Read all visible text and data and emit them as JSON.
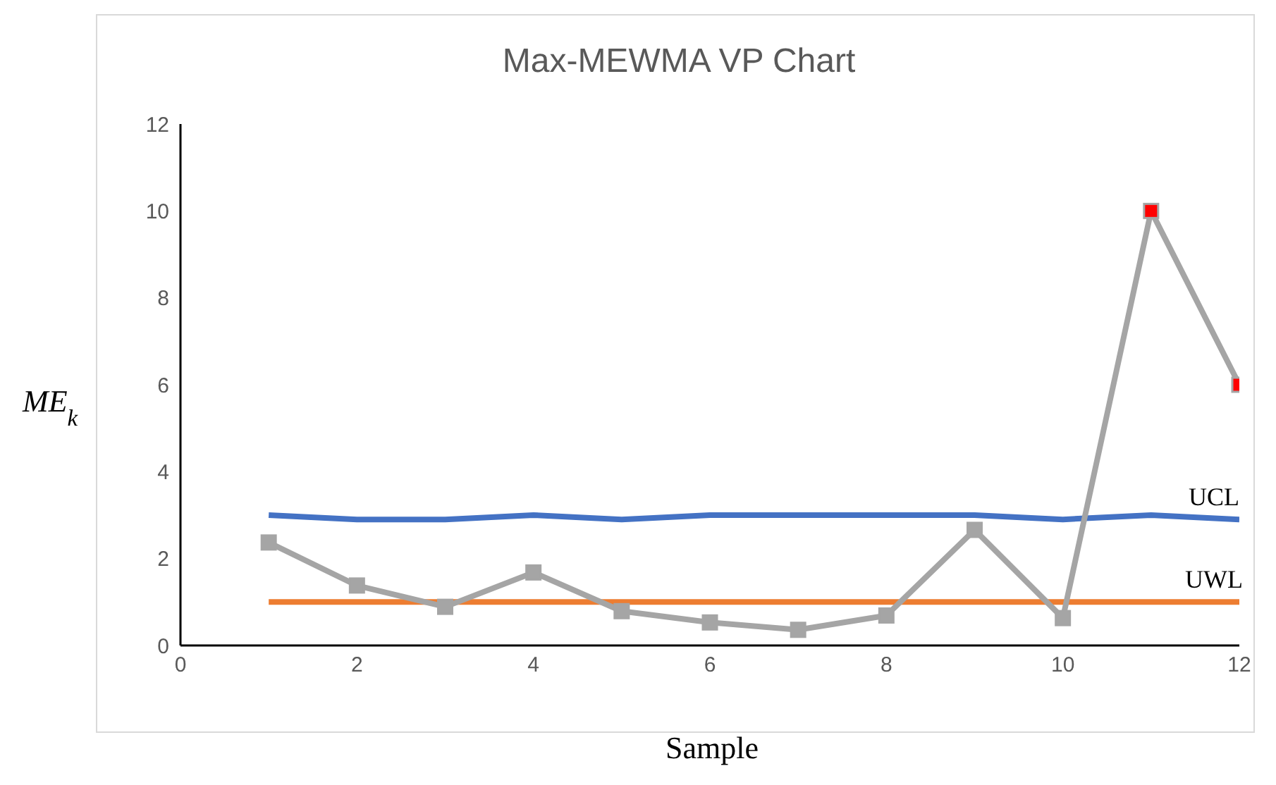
{
  "chart_data": {
    "type": "line",
    "title": "Max-MEWMA VP Chart",
    "xlabel": "Sample",
    "ylabel": "ME$_{k}$",
    "x": [
      1,
      2,
      3,
      4,
      5,
      6,
      7,
      8,
      9,
      10,
      11,
      12
    ],
    "series": [
      {
        "name": "UCL",
        "color": "#4472c4",
        "marker": "none",
        "values": [
          3.0,
          2.9,
          2.9,
          3.0,
          2.9,
          3.0,
          3.0,
          3.0,
          3.0,
          2.9,
          3.0,
          2.9
        ]
      },
      {
        "name": "UWL",
        "color": "#ed7d31",
        "marker": "none",
        "values": [
          1,
          1,
          1,
          1,
          1,
          1,
          1,
          1,
          1,
          1,
          1,
          1
        ]
      },
      {
        "color": "#a5a5a5",
        "marker": "square",
        "colors": [
          "#a5a5a5",
          "#a5a5a5",
          "#a5a5a5",
          "#a5a5a5",
          "#a5a5a5",
          "#a5a5a5",
          "#a5a5a5",
          "#a5a5a5",
          "#a5a5a5",
          "#a5a5a5",
          "#ff0000",
          "#ff0000"
        ],
        "values": [
          2.37,
          1.38,
          0.89,
          1.68,
          0.79,
          0.53,
          0.36,
          0.69,
          2.66,
          0.63,
          10,
          6
        ]
      }
    ],
    "xlim": [
      0,
      12
    ],
    "xticks": [
      0,
      2,
      4,
      6,
      8,
      10,
      12
    ],
    "ylim": [
      0,
      12
    ],
    "yticks": [
      0,
      2,
      4,
      6,
      8,
      10,
      12
    ],
    "grid": false,
    "legend": false,
    "line_style": "solid"
  }
}
